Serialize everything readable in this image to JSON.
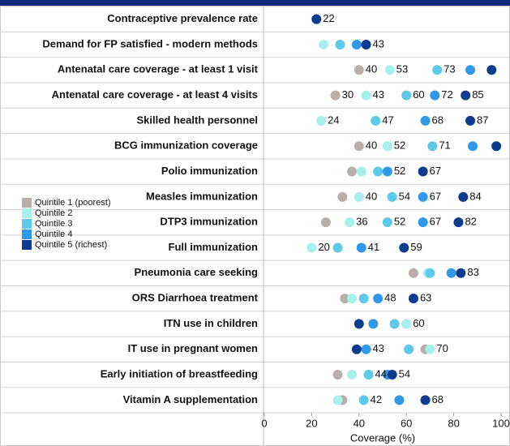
{
  "chart_data": {
    "type": "dot",
    "categories": [
      "Contraceptive prevalence rate",
      "Demand for FP satisfied - modern methods",
      "Antenatal care coverage - at least 1 visit",
      "Antenatal care coverage - at least 4 visits",
      "Skilled health personnel",
      "BCG immunization coverage",
      "Polio immunization",
      "Measles immunization",
      "DTP3 immunization",
      "Full immunization",
      "Pneumonia care seeking",
      "ORS Diarrhoea treatment",
      "ITN use in children",
      "IT use in pregnant women",
      "Early initiation of breastfeeding",
      "Vitamin A supplementation"
    ],
    "series": [
      {
        "name": "Quintile 1 (poorest)",
        "color": "#b9aea9",
        "values": [
          null,
          null,
          40,
          30,
          null,
          40,
          37,
          33,
          26,
          null,
          63,
          34,
          60,
          68,
          31,
          33
        ],
        "value_labels": [
          null,
          null,
          "40",
          "30",
          null,
          "40",
          null,
          null,
          null,
          null,
          null,
          null,
          "60",
          null,
          null,
          null
        ]
      },
      {
        "name": "Quintile 2",
        "color": "#a8f0ec",
        "values": [
          null,
          25,
          53,
          43,
          24,
          52,
          41,
          40,
          36,
          20,
          69,
          37,
          60,
          70,
          37,
          31
        ],
        "value_labels": [
          null,
          null,
          "53",
          "43",
          "24",
          "52",
          null,
          "40",
          "36",
          "20",
          null,
          null,
          null,
          "70",
          null,
          null
        ]
      },
      {
        "name": "Quintile 3",
        "color": "#5ec9e8",
        "values": [
          null,
          32,
          73,
          60,
          47,
          71,
          48,
          54,
          52,
          31,
          70,
          42,
          55,
          61,
          44,
          42
        ],
        "value_labels": [
          null,
          null,
          "73",
          "60",
          "47",
          "71",
          null,
          "54",
          "52",
          null,
          null,
          null,
          null,
          null,
          "44",
          "42"
        ]
      },
      {
        "name": "Quintile 4",
        "color": "#2f98e8",
        "values": [
          null,
          39,
          87,
          72,
          68,
          88,
          52,
          67,
          67,
          41,
          79,
          48,
          46,
          43,
          52,
          57
        ],
        "value_labels": [
          null,
          null,
          null,
          "72",
          "68",
          null,
          "52",
          "67",
          "67",
          "41",
          null,
          "48",
          null,
          "43",
          null,
          null
        ]
      },
      {
        "name": "Quintile 5 (richest)",
        "color": "#0d3c8f",
        "values": [
          22,
          43,
          96,
          85,
          87,
          98,
          67,
          84,
          82,
          59,
          83,
          63,
          40,
          39,
          54,
          68
        ],
        "value_labels": [
          "22",
          "43",
          null,
          "85",
          "87",
          null,
          "67",
          "84",
          "82",
          "59",
          "83",
          "63",
          null,
          null,
          "54",
          "68"
        ]
      }
    ],
    "xlabel": "Coverage (%)",
    "xlim": [
      0,
      100
    ],
    "xticks": [
      0,
      20,
      40,
      60,
      80,
      100
    ],
    "grid": true
  }
}
